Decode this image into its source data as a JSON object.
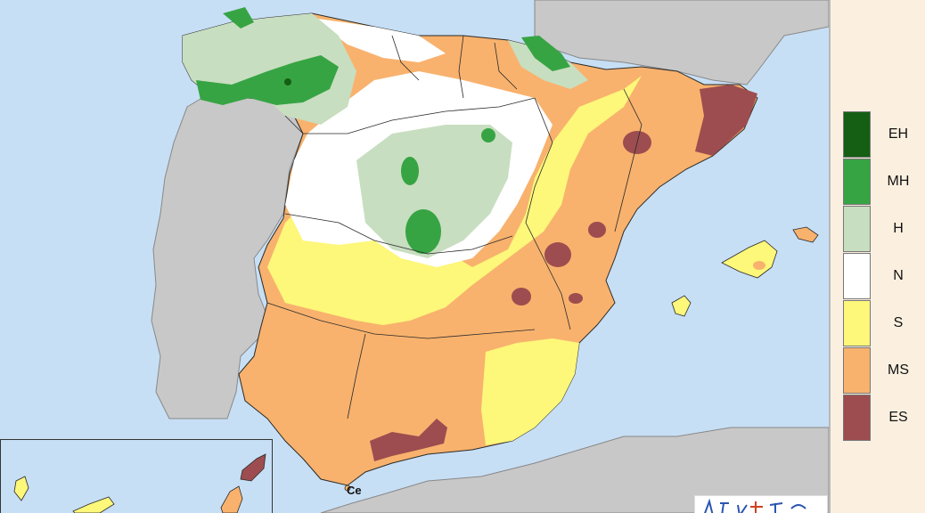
{
  "map": {
    "city_label": "Ce",
    "colors": {
      "sea": "#c7dff5",
      "land_other": "#c8c8c8",
      "border": "#2a2a2a"
    }
  },
  "legend": {
    "items": [
      {
        "code": "EH",
        "color": "#145f14"
      },
      {
        "code": "MH",
        "color": "#37a444"
      },
      {
        "code": "H",
        "color": "#c8dec0"
      },
      {
        "code": "N",
        "color": "#ffffff"
      },
      {
        "code": "S",
        "color": "#fdf77a"
      },
      {
        "code": "MS",
        "color": "#f8b26d"
      },
      {
        "code": "ES",
        "color": "#9d4d4f"
      }
    ]
  }
}
